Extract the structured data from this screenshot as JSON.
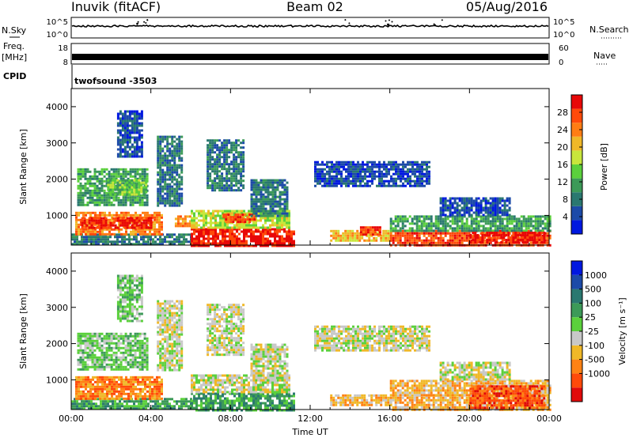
{
  "header": {
    "station": "Inuvik (fitACF)",
    "beam": "Beam 02",
    "date": "05/Aug/2016"
  },
  "top_panels": {
    "nsky_label": "N.Sky",
    "nsky_ticks": [
      "10^5",
      "10^0"
    ],
    "nsearch_label": "N.Search",
    "nsearch_ticks": [
      "10^5",
      "10^0"
    ],
    "freq_label": "Freq.",
    "freq_unit": "[MHz]",
    "freq_ticks": [
      "18",
      "8"
    ],
    "nave_label": "Nave",
    "nave_ticks": [
      "60",
      "0"
    ],
    "cpid_label": "CPID",
    "cpid_value": "twofsound  -3503"
  },
  "colors": {
    "power": [
      "#0018e0",
      "#1c4aa8",
      "#2a7870",
      "#3c9a58",
      "#5bd03c",
      "#c8e63c",
      "#f0b828",
      "#ff7d14",
      "#ff4a0a",
      "#e80808"
    ],
    "velocity": [
      "#e00a0a",
      "#ff4a0a",
      "#ff8214",
      "#f0b828",
      "#c8c8c8",
      "#5bd03c",
      "#3c9a58",
      "#2a7870",
      "#1c4aa8",
      "#0018e0"
    ]
  },
  "chart_data": [
    {
      "type": "heatmap",
      "name": "power",
      "ylabel": "Slant Range [km]",
      "xlabel": "",
      "x_ticks": [
        "00:00",
        "04:00",
        "08:00",
        "12:00",
        "16:00",
        "20:00",
        "00:00"
      ],
      "y_ticks": [
        "1000",
        "2000",
        "3000",
        "4000"
      ],
      "xlim_hours": [
        0,
        24
      ],
      "ylim_km": [
        180,
        4500
      ],
      "colorbar_label": "Power [dB]",
      "colorbar_ticks": [
        "4",
        "8",
        "12",
        "16",
        "20",
        "24",
        "28"
      ],
      "colorbar_range": [
        0,
        32
      ],
      "regions": [
        {
          "t0": 0.0,
          "t1": 6.0,
          "r0": 180,
          "r1": 500,
          "level": 2
        },
        {
          "t0": 0.2,
          "t1": 4.6,
          "r0": 500,
          "r1": 1100,
          "level": 7
        },
        {
          "t0": 0.5,
          "t1": 4.0,
          "r0": 650,
          "r1": 950,
          "level": 9
        },
        {
          "t0": 0.3,
          "t1": 3.8,
          "r0": 1300,
          "r1": 2300,
          "level": 3
        },
        {
          "t0": 1.8,
          "t1": 3.8,
          "r0": 1600,
          "r1": 2000,
          "level": 4
        },
        {
          "t0": 2.3,
          "t1": 3.6,
          "r0": 2600,
          "r1": 3900,
          "level": 1
        },
        {
          "t0": 4.3,
          "t1": 5.6,
          "r0": 1300,
          "r1": 3200,
          "level": 2
        },
        {
          "t0": 5.2,
          "t1": 6.0,
          "r0": 700,
          "r1": 1000,
          "level": 7
        },
        {
          "t0": 6.0,
          "t1": 11.2,
          "r0": 180,
          "r1": 650,
          "level": 9
        },
        {
          "t0": 6.0,
          "t1": 11.0,
          "r0": 650,
          "r1": 1150,
          "level": 5
        },
        {
          "t0": 7.6,
          "t1": 9.2,
          "r0": 800,
          "r1": 1050,
          "level": 8
        },
        {
          "t0": 6.8,
          "t1": 8.6,
          "r0": 1700,
          "r1": 3100,
          "level": 2
        },
        {
          "t0": 9.0,
          "t1": 10.8,
          "r0": 1000,
          "r1": 2000,
          "level": 2
        },
        {
          "t0": 12.2,
          "t1": 18.0,
          "r0": 1800,
          "r1": 2500,
          "level": 1
        },
        {
          "t0": 13.0,
          "t1": 16.0,
          "r0": 300,
          "r1": 600,
          "level": 6
        },
        {
          "t0": 14.5,
          "t1": 15.5,
          "r0": 450,
          "r1": 700,
          "level": 8
        },
        {
          "t0": 16.0,
          "t1": 24.0,
          "r0": 200,
          "r1": 600,
          "level": 8
        },
        {
          "t0": 16.0,
          "t1": 24.0,
          "r0": 600,
          "r1": 1000,
          "level": 3
        },
        {
          "t0": 20.0,
          "t1": 23.8,
          "r0": 250,
          "r1": 550,
          "level": 9
        },
        {
          "t0": 18.5,
          "t1": 22.0,
          "r0": 1000,
          "r1": 1500,
          "level": 1
        }
      ]
    },
    {
      "type": "heatmap",
      "name": "velocity",
      "ylabel": "Slant Range [km]",
      "xlabel": "Time UT",
      "x_ticks": [
        "00:00",
        "04:00",
        "08:00",
        "12:00",
        "16:00",
        "20:00",
        "00:00"
      ],
      "y_ticks": [
        "1000",
        "2000",
        "3000",
        "4000"
      ],
      "xlim_hours": [
        0,
        24
      ],
      "ylim_km": [
        180,
        4500
      ],
      "colorbar_label": "Velocity [m s⁻¹]",
      "colorbar_ticks": [
        "1000",
        "500",
        "100",
        "25",
        "-25",
        "-100",
        "-500",
        "-1000"
      ],
      "regions": [
        {
          "t0": 0.0,
          "t1": 6.0,
          "r0": 180,
          "r1": 500,
          "level": 6
        },
        {
          "t0": 0.2,
          "t1": 4.6,
          "r0": 500,
          "r1": 1100,
          "level": 2
        },
        {
          "t0": 0.3,
          "t1": 3.8,
          "r0": 1300,
          "r1": 2300,
          "level": 5
        },
        {
          "t0": 2.3,
          "t1": 3.6,
          "r0": 2600,
          "r1": 3900,
          "level": 5
        },
        {
          "t0": 4.3,
          "t1": 5.6,
          "r0": 1300,
          "r1": 3200,
          "level": 4
        },
        {
          "t0": 6.0,
          "t1": 11.2,
          "r0": 180,
          "r1": 650,
          "level": 6
        },
        {
          "t0": 6.0,
          "t1": 11.0,
          "r0": 650,
          "r1": 1150,
          "level": 4
        },
        {
          "t0": 6.8,
          "t1": 8.6,
          "r0": 1700,
          "r1": 3100,
          "level": 4
        },
        {
          "t0": 9.0,
          "t1": 10.8,
          "r0": 1000,
          "r1": 2000,
          "level": 4
        },
        {
          "t0": 12.2,
          "t1": 18.0,
          "r0": 1800,
          "r1": 2500,
          "level": 4
        },
        {
          "t0": 13.0,
          "t1": 16.0,
          "r0": 300,
          "r1": 600,
          "level": 3
        },
        {
          "t0": 16.0,
          "t1": 24.0,
          "r0": 200,
          "r1": 600,
          "level": 3
        },
        {
          "t0": 16.0,
          "t1": 24.0,
          "r0": 600,
          "r1": 1000,
          "level": 3
        },
        {
          "t0": 20.0,
          "t1": 23.8,
          "r0": 250,
          "r1": 850,
          "level": 1
        },
        {
          "t0": 18.5,
          "t1": 22.0,
          "r0": 1000,
          "r1": 1500,
          "level": 4
        }
      ]
    }
  ]
}
